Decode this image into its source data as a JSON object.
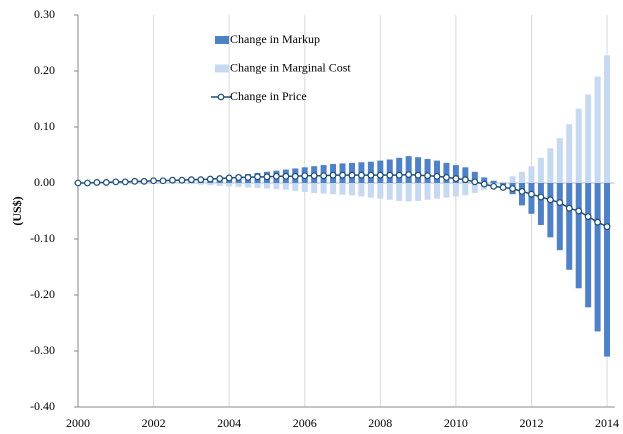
{
  "chart_data": {
    "type": "bar-line",
    "y_label": "(US$)",
    "legend": "upper center",
    "grid": "x",
    "x": [
      2000,
      2000.25,
      2000.5,
      2000.75,
      2001,
      2001.25,
      2001.5,
      2001.75,
      2002,
      2002.25,
      2002.5,
      2002.75,
      2003,
      2003.25,
      2003.5,
      2003.75,
      2004,
      2004.25,
      2004.5,
      2004.75,
      2005,
      2005.25,
      2005.5,
      2005.75,
      2006,
      2006.25,
      2006.5,
      2006.75,
      2007,
      2007.25,
      2007.5,
      2007.75,
      2008,
      2008.25,
      2008.5,
      2008.75,
      2009,
      2009.25,
      2009.5,
      2009.75,
      2010,
      2010.25,
      2010.5,
      2010.75,
      2011,
      2011.25,
      2011.5,
      2011.75,
      2012,
      2012.25,
      2012.5,
      2012.75,
      2013,
      2013.25,
      2013.5,
      2013.75,
      2014
    ],
    "xlim": [
      2000,
      2014.2
    ],
    "xticks": [
      2000,
      2002,
      2004,
      2006,
      2008,
      2010,
      2012,
      2014
    ],
    "ylim": [
      -0.4,
      0.3
    ],
    "yticks": [
      {
        "value": -0.4,
        "label": "-0.40"
      },
      {
        "value": -0.3,
        "label": "-0.30"
      },
      {
        "value": -0.2,
        "label": "-0.20"
      },
      {
        "value": -0.1,
        "label": "-0.10"
      },
      {
        "value": 0,
        "label": "0.00"
      },
      {
        "value": 0.1,
        "label": "0.10"
      },
      {
        "value": 0.2,
        "label": "0.20"
      },
      {
        "value": 0.3,
        "label": "0.30"
      }
    ],
    "series": [
      {
        "name": "Change in Markup",
        "type": "bar",
        "color": "#4f81c7",
        "values": [
          0,
          0,
          0,
          0,
          0.001,
          0.001,
          0.001,
          0.002,
          0.002,
          0.003,
          0.003,
          0.004,
          0.005,
          0.006,
          0.008,
          0.01,
          0.012,
          0.014,
          0.016,
          0.018,
          0.02,
          0.022,
          0.024,
          0.026,
          0.028,
          0.03,
          0.032,
          0.034,
          0.035,
          0.036,
          0.037,
          0.038,
          0.04,
          0.042,
          0.045,
          0.048,
          0.046,
          0.043,
          0.04,
          0.036,
          0.032,
          0.028,
          0.02,
          0.01,
          0.004,
          -0.004,
          -0.02,
          -0.04,
          -0.055,
          -0.075,
          -0.097,
          -0.12,
          -0.155,
          -0.188,
          -0.222,
          -0.265,
          -0.31
        ]
      },
      {
        "name": "Change in Marginal Cost",
        "type": "bar",
        "color": "#c6d9f0",
        "values": [
          0,
          0,
          0,
          0,
          0,
          0,
          0,
          0,
          0,
          0,
          -0.001,
          -0.001,
          -0.002,
          -0.003,
          -0.004,
          -0.005,
          -0.006,
          -0.007,
          -0.008,
          -0.009,
          -0.01,
          -0.011,
          -0.012,
          -0.014,
          -0.016,
          -0.018,
          -0.019,
          -0.02,
          -0.021,
          -0.022,
          -0.024,
          -0.026,
          -0.028,
          -0.03,
          -0.032,
          -0.033,
          -0.032,
          -0.03,
          -0.028,
          -0.026,
          -0.024,
          -0.022,
          -0.018,
          -0.012,
          -0.006,
          0.002,
          0.012,
          0.02,
          0.03,
          0.045,
          0.062,
          0.08,
          0.105,
          0.133,
          0.158,
          0.19,
          0.228
        ]
      },
      {
        "name": "Change in Price",
        "type": "line",
        "color": "#1f4e79",
        "values": [
          0,
          0,
          0.001,
          0.001,
          0.002,
          0.002,
          0.003,
          0.003,
          0.004,
          0.004,
          0.005,
          0.005,
          0.006,
          0.006,
          0.007,
          0.008,
          0.009,
          0.01,
          0.01,
          0.011,
          0.011,
          0.012,
          0.012,
          0.012,
          0.013,
          0.013,
          0.013,
          0.014,
          0.014,
          0.014,
          0.014,
          0.014,
          0.014,
          0.014,
          0.014,
          0.015,
          0.014,
          0.013,
          0.012,
          0.01,
          0.008,
          0.006,
          0.002,
          -0.002,
          -0.006,
          -0.008,
          -0.01,
          -0.015,
          -0.02,
          -0.025,
          -0.03,
          -0.035,
          -0.045,
          -0.05,
          -0.06,
          -0.07,
          -0.078
        ]
      }
    ]
  }
}
